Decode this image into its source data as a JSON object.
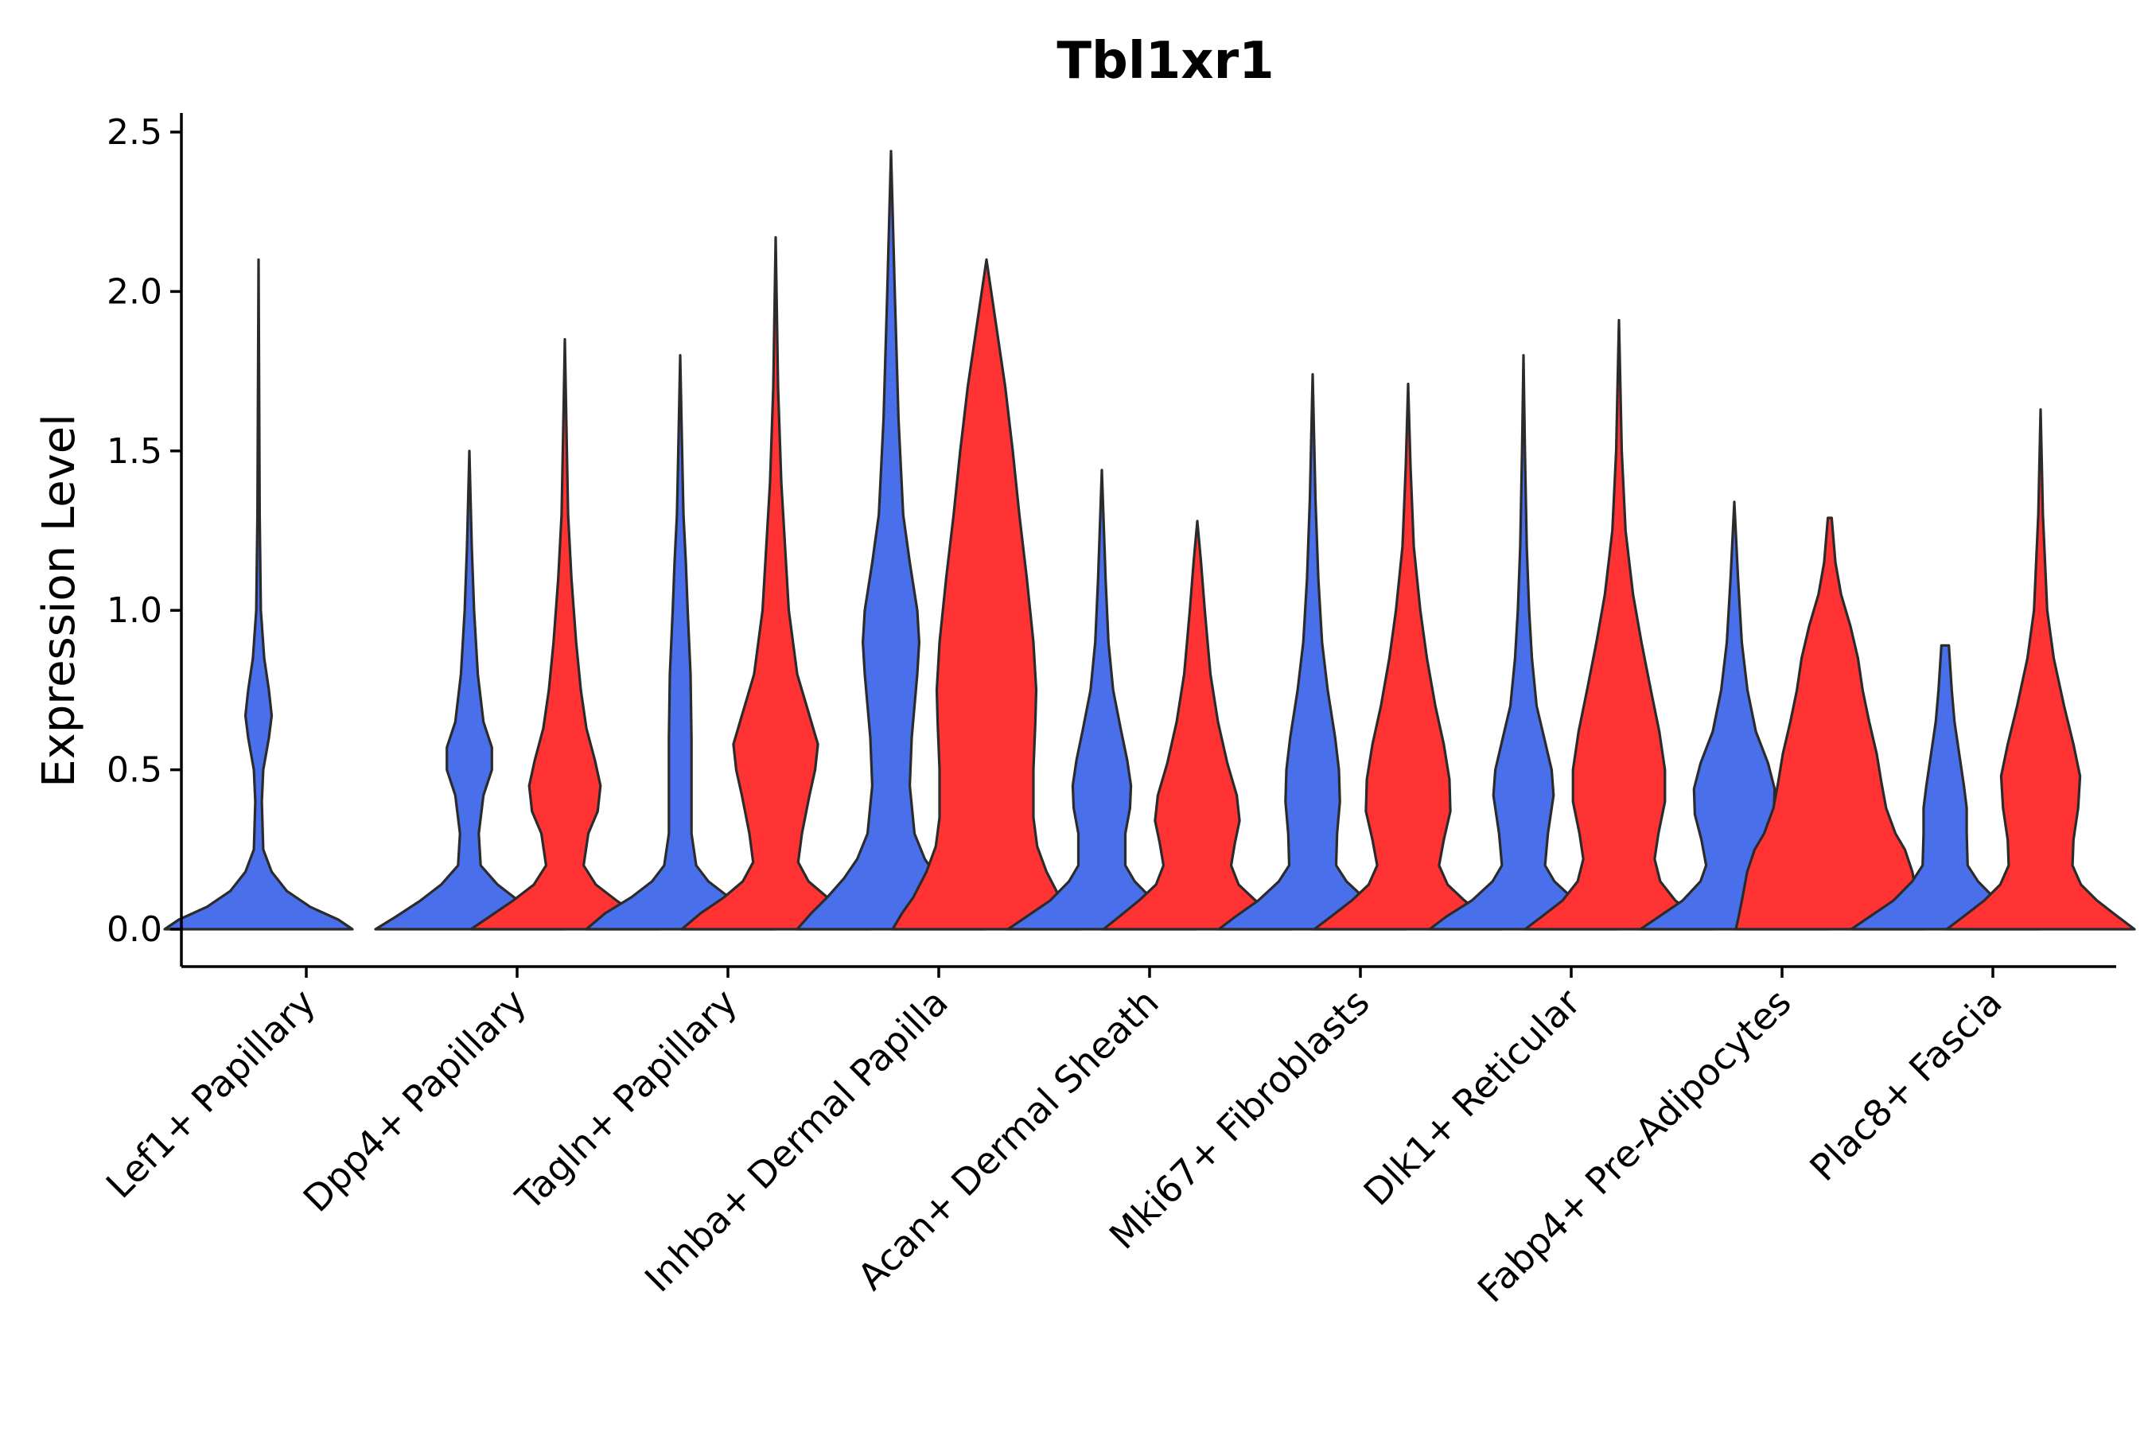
{
  "chart_data": {
    "type": "violin",
    "title": "Tbl1xr1",
    "xlabel": "",
    "ylabel": "Expression Level",
    "ylim": [
      -0.12,
      2.55
    ],
    "yticks": [
      0.0,
      0.5,
      1.0,
      1.5,
      2.0,
      2.5
    ],
    "ytick_labels": [
      "0.0",
      "0.5",
      "1.0",
      "1.5",
      "2.0",
      "2.5"
    ],
    "grid": false,
    "legend": "none",
    "series_colors": [
      "#4A6FEA",
      "#FF3333"
    ],
    "categories": [
      "Lef1+ Papillary",
      "Dpp4+ Papillary",
      "Tagln+ Papillary",
      "Inhba+ Dermal Papilla",
      "Acan+ Dermal Sheath",
      "Mki67+ Fibroblasts",
      "Dlk1+ Reticular",
      "Fabp4+ Pre-Adipocytes",
      "Plac8+ Fascia"
    ],
    "violins": [
      {
        "category": 0,
        "series": 0,
        "max": 2.1,
        "profile": [
          [
            0,
            1.0
          ],
          [
            0.03,
            0.85
          ],
          [
            0.07,
            0.55
          ],
          [
            0.12,
            0.3
          ],
          [
            0.18,
            0.14
          ],
          [
            0.25,
            0.05
          ],
          [
            0.4,
            0.035
          ],
          [
            0.5,
            0.05
          ],
          [
            0.6,
            0.11
          ],
          [
            0.67,
            0.14
          ],
          [
            0.75,
            0.11
          ],
          [
            0.85,
            0.06
          ],
          [
            1.0,
            0.025
          ],
          [
            1.3,
            0.012
          ],
          [
            1.7,
            0.006
          ],
          [
            2.1,
            0.0
          ]
        ]
      },
      {
        "category": 1,
        "series": 0,
        "max": 1.5,
        "profile": [
          [
            0,
            1.0
          ],
          [
            0.04,
            0.78
          ],
          [
            0.09,
            0.52
          ],
          [
            0.14,
            0.3
          ],
          [
            0.2,
            0.12
          ],
          [
            0.3,
            0.1
          ],
          [
            0.42,
            0.15
          ],
          [
            0.5,
            0.24
          ],
          [
            0.57,
            0.24
          ],
          [
            0.65,
            0.15
          ],
          [
            0.8,
            0.09
          ],
          [
            1.0,
            0.05
          ],
          [
            1.2,
            0.025
          ],
          [
            1.5,
            0.0
          ]
        ]
      },
      {
        "category": 1,
        "series": 1,
        "max": 1.85,
        "profile": [
          [
            0,
            1.0
          ],
          [
            0.04,
            0.8
          ],
          [
            0.09,
            0.55
          ],
          [
            0.14,
            0.33
          ],
          [
            0.2,
            0.2
          ],
          [
            0.3,
            0.25
          ],
          [
            0.37,
            0.35
          ],
          [
            0.45,
            0.38
          ],
          [
            0.53,
            0.32
          ],
          [
            0.63,
            0.23
          ],
          [
            0.75,
            0.17
          ],
          [
            0.9,
            0.12
          ],
          [
            1.1,
            0.07
          ],
          [
            1.3,
            0.035
          ],
          [
            1.6,
            0.015
          ],
          [
            1.85,
            0.0
          ]
        ]
      },
      {
        "category": 2,
        "series": 0,
        "max": 1.8,
        "profile": [
          [
            0,
            1.0
          ],
          [
            0.05,
            0.8
          ],
          [
            0.1,
            0.52
          ],
          [
            0.15,
            0.3
          ],
          [
            0.2,
            0.17
          ],
          [
            0.3,
            0.12
          ],
          [
            0.45,
            0.12
          ],
          [
            0.6,
            0.12
          ],
          [
            0.8,
            0.11
          ],
          [
            1.0,
            0.08
          ],
          [
            1.15,
            0.06
          ],
          [
            1.3,
            0.035
          ],
          [
            1.5,
            0.02
          ],
          [
            1.8,
            0.0
          ]
        ]
      },
      {
        "category": 2,
        "series": 1,
        "max": 2.17,
        "profile": [
          [
            0,
            1.0
          ],
          [
            0.05,
            0.8
          ],
          [
            0.1,
            0.55
          ],
          [
            0.15,
            0.35
          ],
          [
            0.21,
            0.24
          ],
          [
            0.3,
            0.28
          ],
          [
            0.42,
            0.36
          ],
          [
            0.5,
            0.42
          ],
          [
            0.58,
            0.45
          ],
          [
            0.68,
            0.35
          ],
          [
            0.8,
            0.23
          ],
          [
            1.0,
            0.14
          ],
          [
            1.2,
            0.1
          ],
          [
            1.4,
            0.06
          ],
          [
            1.7,
            0.025
          ],
          [
            2.17,
            0.0
          ]
        ]
      },
      {
        "category": 3,
        "series": 0,
        "max": 2.44,
        "profile": [
          [
            0,
            1.0
          ],
          [
            0.05,
            0.85
          ],
          [
            0.1,
            0.68
          ],
          [
            0.16,
            0.5
          ],
          [
            0.22,
            0.36
          ],
          [
            0.3,
            0.25
          ],
          [
            0.45,
            0.2
          ],
          [
            0.6,
            0.22
          ],
          [
            0.8,
            0.28
          ],
          [
            0.9,
            0.3
          ],
          [
            1.0,
            0.28
          ],
          [
            1.15,
            0.2
          ],
          [
            1.3,
            0.13
          ],
          [
            1.6,
            0.08
          ],
          [
            2.0,
            0.04
          ],
          [
            2.44,
            0.0
          ]
        ]
      },
      {
        "category": 3,
        "series": 1,
        "max": 2.1,
        "profile": [
          [
            0,
            1.0
          ],
          [
            0.05,
            0.9
          ],
          [
            0.1,
            0.78
          ],
          [
            0.18,
            0.64
          ],
          [
            0.26,
            0.54
          ],
          [
            0.35,
            0.5
          ],
          [
            0.5,
            0.5
          ],
          [
            0.65,
            0.52
          ],
          [
            0.75,
            0.53
          ],
          [
            0.9,
            0.5
          ],
          [
            1.1,
            0.43
          ],
          [
            1.3,
            0.35
          ],
          [
            1.5,
            0.28
          ],
          [
            1.7,
            0.2
          ],
          [
            1.9,
            0.1
          ],
          [
            2.1,
            0.0
          ]
        ]
      },
      {
        "category": 4,
        "series": 0,
        "max": 1.44,
        "profile": [
          [
            0,
            1.0
          ],
          [
            0.04,
            0.8
          ],
          [
            0.09,
            0.55
          ],
          [
            0.15,
            0.35
          ],
          [
            0.2,
            0.25
          ],
          [
            0.3,
            0.25
          ],
          [
            0.38,
            0.3
          ],
          [
            0.45,
            0.31
          ],
          [
            0.53,
            0.27
          ],
          [
            0.63,
            0.2
          ],
          [
            0.75,
            0.12
          ],
          [
            0.9,
            0.07
          ],
          [
            1.1,
            0.04
          ],
          [
            1.44,
            0.0
          ]
        ]
      },
      {
        "category": 4,
        "series": 1,
        "max": 1.28,
        "profile": [
          [
            0,
            1.0
          ],
          [
            0.04,
            0.83
          ],
          [
            0.09,
            0.62
          ],
          [
            0.14,
            0.44
          ],
          [
            0.2,
            0.36
          ],
          [
            0.27,
            0.4
          ],
          [
            0.34,
            0.45
          ],
          [
            0.42,
            0.42
          ],
          [
            0.52,
            0.32
          ],
          [
            0.65,
            0.22
          ],
          [
            0.8,
            0.14
          ],
          [
            1.0,
            0.08
          ],
          [
            1.15,
            0.04
          ],
          [
            1.28,
            0.0
          ]
        ]
      },
      {
        "category": 5,
        "series": 0,
        "max": 1.74,
        "profile": [
          [
            0,
            1.0
          ],
          [
            0.04,
            0.82
          ],
          [
            0.09,
            0.58
          ],
          [
            0.15,
            0.36
          ],
          [
            0.2,
            0.25
          ],
          [
            0.3,
            0.26
          ],
          [
            0.4,
            0.29
          ],
          [
            0.5,
            0.28
          ],
          [
            0.6,
            0.24
          ],
          [
            0.75,
            0.16
          ],
          [
            0.9,
            0.1
          ],
          [
            1.1,
            0.06
          ],
          [
            1.35,
            0.03
          ],
          [
            1.74,
            0.0
          ]
        ]
      },
      {
        "category": 5,
        "series": 1,
        "max": 1.71,
        "profile": [
          [
            0,
            1.0
          ],
          [
            0.04,
            0.82
          ],
          [
            0.09,
            0.6
          ],
          [
            0.14,
            0.42
          ],
          [
            0.2,
            0.33
          ],
          [
            0.28,
            0.38
          ],
          [
            0.37,
            0.45
          ],
          [
            0.47,
            0.44
          ],
          [
            0.58,
            0.38
          ],
          [
            0.7,
            0.29
          ],
          [
            0.85,
            0.2
          ],
          [
            1.0,
            0.13
          ],
          [
            1.2,
            0.06
          ],
          [
            1.45,
            0.025
          ],
          [
            1.71,
            0.0
          ]
        ]
      },
      {
        "category": 6,
        "series": 0,
        "max": 1.8,
        "profile": [
          [
            0,
            1.0
          ],
          [
            0.04,
            0.82
          ],
          [
            0.09,
            0.55
          ],
          [
            0.15,
            0.33
          ],
          [
            0.2,
            0.23
          ],
          [
            0.3,
            0.26
          ],
          [
            0.42,
            0.32
          ],
          [
            0.5,
            0.3
          ],
          [
            0.6,
            0.22
          ],
          [
            0.7,
            0.14
          ],
          [
            0.85,
            0.09
          ],
          [
            1.0,
            0.06
          ],
          [
            1.2,
            0.035
          ],
          [
            1.5,
            0.015
          ],
          [
            1.8,
            0.0
          ]
        ]
      },
      {
        "category": 6,
        "series": 1,
        "max": 1.91,
        "profile": [
          [
            0,
            1.0
          ],
          [
            0.04,
            0.82
          ],
          [
            0.09,
            0.6
          ],
          [
            0.15,
            0.44
          ],
          [
            0.22,
            0.38
          ],
          [
            0.3,
            0.42
          ],
          [
            0.4,
            0.49
          ],
          [
            0.5,
            0.49
          ],
          [
            0.62,
            0.43
          ],
          [
            0.75,
            0.34
          ],
          [
            0.9,
            0.24
          ],
          [
            1.05,
            0.15
          ],
          [
            1.25,
            0.07
          ],
          [
            1.5,
            0.03
          ],
          [
            1.91,
            0.0
          ]
        ]
      },
      {
        "category": 7,
        "series": 0,
        "max": 1.34,
        "profile": [
          [
            0,
            1.0
          ],
          [
            0.04,
            0.8
          ],
          [
            0.09,
            0.55
          ],
          [
            0.15,
            0.36
          ],
          [
            0.2,
            0.3
          ],
          [
            0.28,
            0.35
          ],
          [
            0.36,
            0.42
          ],
          [
            0.44,
            0.43
          ],
          [
            0.52,
            0.36
          ],
          [
            0.62,
            0.23
          ],
          [
            0.75,
            0.14
          ],
          [
            0.9,
            0.08
          ],
          [
            1.1,
            0.04
          ],
          [
            1.34,
            0.0
          ]
        ]
      },
      {
        "category": 7,
        "series": 1,
        "max": 1.29,
        "profile": [
          [
            0,
            1.0
          ],
          [
            0.04,
            0.97
          ],
          [
            0.1,
            0.93
          ],
          [
            0.18,
            0.88
          ],
          [
            0.25,
            0.8
          ],
          [
            0.3,
            0.7
          ],
          [
            0.38,
            0.6
          ],
          [
            0.46,
            0.55
          ],
          [
            0.55,
            0.5
          ],
          [
            0.65,
            0.42
          ],
          [
            0.75,
            0.35
          ],
          [
            0.85,
            0.3
          ],
          [
            0.95,
            0.22
          ],
          [
            1.05,
            0.12
          ],
          [
            1.15,
            0.06
          ],
          [
            1.29,
            0.02
          ]
        ]
      },
      {
        "category": 8,
        "series": 0,
        "max": 0.89,
        "profile": [
          [
            0,
            1.0
          ],
          [
            0.04,
            0.8
          ],
          [
            0.09,
            0.55
          ],
          [
            0.15,
            0.35
          ],
          [
            0.2,
            0.24
          ],
          [
            0.3,
            0.23
          ],
          [
            0.38,
            0.23
          ],
          [
            0.45,
            0.2
          ],
          [
            0.55,
            0.15
          ],
          [
            0.65,
            0.1
          ],
          [
            0.75,
            0.07
          ],
          [
            0.89,
            0.04
          ]
        ]
      },
      {
        "category": 8,
        "series": 1,
        "max": 1.63,
        "profile": [
          [
            0,
            1.0
          ],
          [
            0.04,
            0.82
          ],
          [
            0.09,
            0.6
          ],
          [
            0.14,
            0.43
          ],
          [
            0.2,
            0.34
          ],
          [
            0.28,
            0.35
          ],
          [
            0.38,
            0.4
          ],
          [
            0.48,
            0.42
          ],
          [
            0.58,
            0.35
          ],
          [
            0.7,
            0.25
          ],
          [
            0.85,
            0.14
          ],
          [
            1.0,
            0.07
          ],
          [
            1.3,
            0.025
          ],
          [
            1.63,
            0.0
          ]
        ]
      }
    ]
  }
}
